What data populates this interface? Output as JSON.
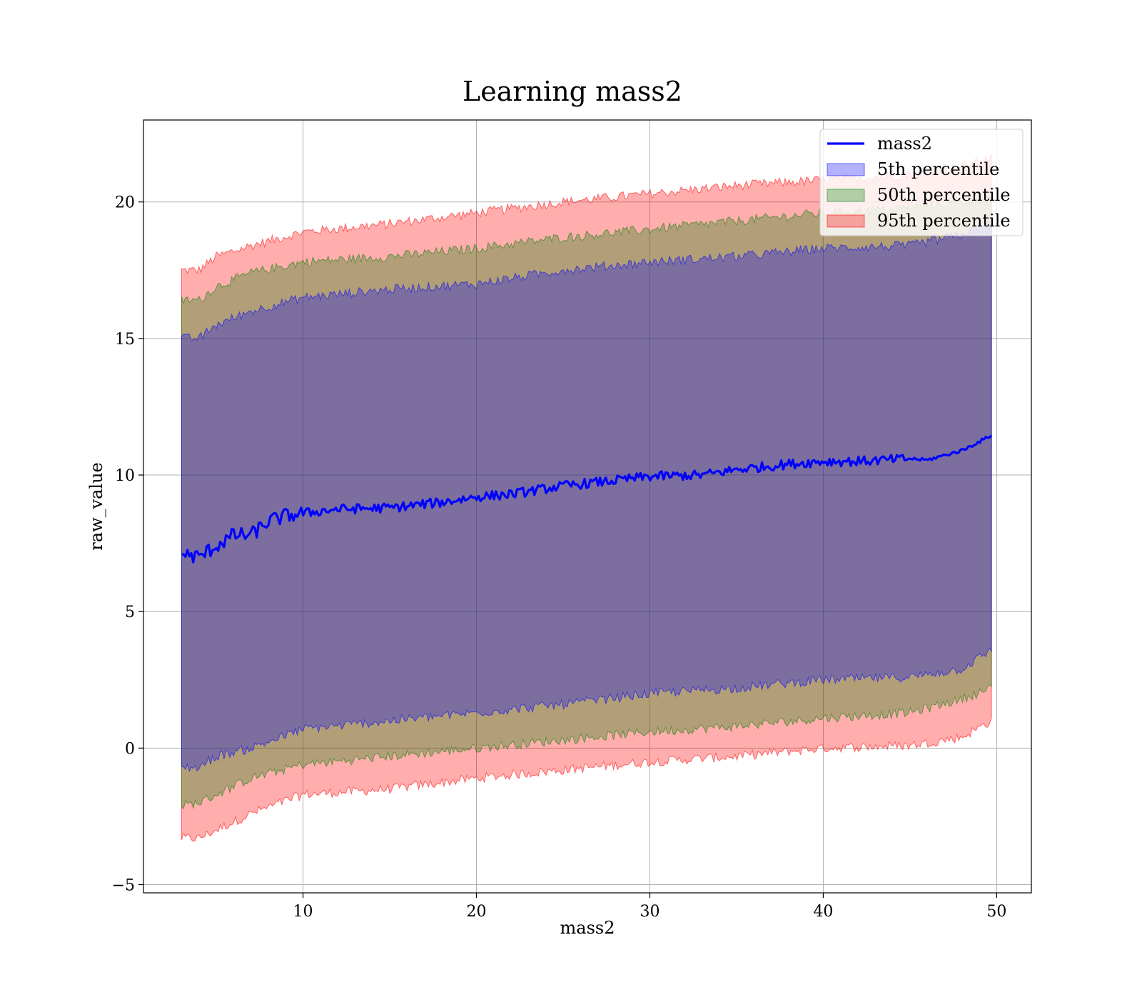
{
  "chart_data": {
    "type": "line",
    "title": "Learning mass2",
    "xlabel": "mass2",
    "ylabel": "raw_value",
    "xlim": [
      0.8,
      52
    ],
    "ylim": [
      -5.3,
      23.0
    ],
    "xticks": [
      10,
      20,
      30,
      40,
      50
    ],
    "yticks": [
      -5,
      0,
      5,
      10,
      15,
      20
    ],
    "grid": true,
    "legend_position": "top-right",
    "x_range": [
      3.0,
      49.7
    ],
    "series": [
      {
        "name": "mass2",
        "kind": "line",
        "color": "#0000ff",
        "x": [
          3.0,
          4.0,
          5.0,
          6.0,
          7.0,
          8.0,
          9.0,
          10.0,
          12.0,
          15.0,
          18.0,
          20.0,
          22.0,
          25.0,
          28.0,
          30.0,
          33.0,
          35.0,
          38.0,
          40.0,
          42.0,
          45.0,
          46.0,
          48.0,
          49.7
        ],
        "y": [
          7.1,
          7.0,
          7.4,
          7.8,
          7.8,
          8.3,
          8.5,
          8.6,
          8.75,
          8.8,
          9.0,
          9.2,
          9.3,
          9.6,
          9.8,
          9.95,
          10.0,
          10.2,
          10.4,
          10.5,
          10.5,
          10.6,
          10.55,
          10.9,
          11.45
        ]
      },
      {
        "name": "5th percentile",
        "kind": "band",
        "color": "#0000ff",
        "x": [
          3.0,
          4.0,
          5.0,
          7.0,
          10.0,
          15.0,
          20.0,
          25.0,
          30.0,
          35.0,
          40.0,
          45.0,
          48.0,
          49.7
        ],
        "lower": [
          -0.7,
          -0.7,
          -0.3,
          0.0,
          0.7,
          1.0,
          1.3,
          1.6,
          2.0,
          2.2,
          2.5,
          2.6,
          2.9,
          3.6
        ],
        "upper": [
          15.0,
          15.0,
          15.5,
          16.0,
          16.5,
          16.8,
          17.0,
          17.5,
          17.8,
          18.0,
          18.3,
          18.4,
          18.8,
          19.2
        ]
      },
      {
        "name": "50th percentile",
        "kind": "band",
        "color": "#008000",
        "x": [
          3.0,
          4.0,
          5.0,
          7.0,
          10.0,
          15.0,
          20.0,
          25.0,
          30.0,
          35.0,
          40.0,
          45.0,
          48.0,
          49.7
        ],
        "lower": [
          -2.1,
          -2.0,
          -1.7,
          -1.1,
          -0.6,
          -0.3,
          0.0,
          0.3,
          0.6,
          0.8,
          1.1,
          1.3,
          1.8,
          2.2
        ],
        "upper": [
          16.4,
          16.4,
          16.9,
          17.4,
          17.8,
          18.0,
          18.3,
          18.7,
          19.0,
          19.3,
          19.6,
          19.8,
          20.0,
          20.2
        ]
      },
      {
        "name": "95th percentile",
        "kind": "band",
        "color": "#ff0000",
        "x": [
          3.0,
          4.0,
          5.0,
          7.0,
          10.0,
          15.0,
          20.0,
          25.0,
          30.0,
          35.0,
          40.0,
          45.0,
          48.0,
          49.7
        ],
        "lower": [
          -3.3,
          -3.3,
          -3.0,
          -2.4,
          -1.7,
          -1.5,
          -1.1,
          -0.8,
          -0.5,
          -0.3,
          0.0,
          0.1,
          0.4,
          1.0
        ],
        "upper": [
          17.5,
          17.5,
          18.0,
          18.4,
          18.9,
          19.2,
          19.6,
          20.0,
          20.3,
          20.6,
          20.8,
          21.0,
          21.3,
          21.6
        ]
      }
    ]
  },
  "colors": {
    "axes_edge": "#000000",
    "grid": "#b0b0b0"
  }
}
